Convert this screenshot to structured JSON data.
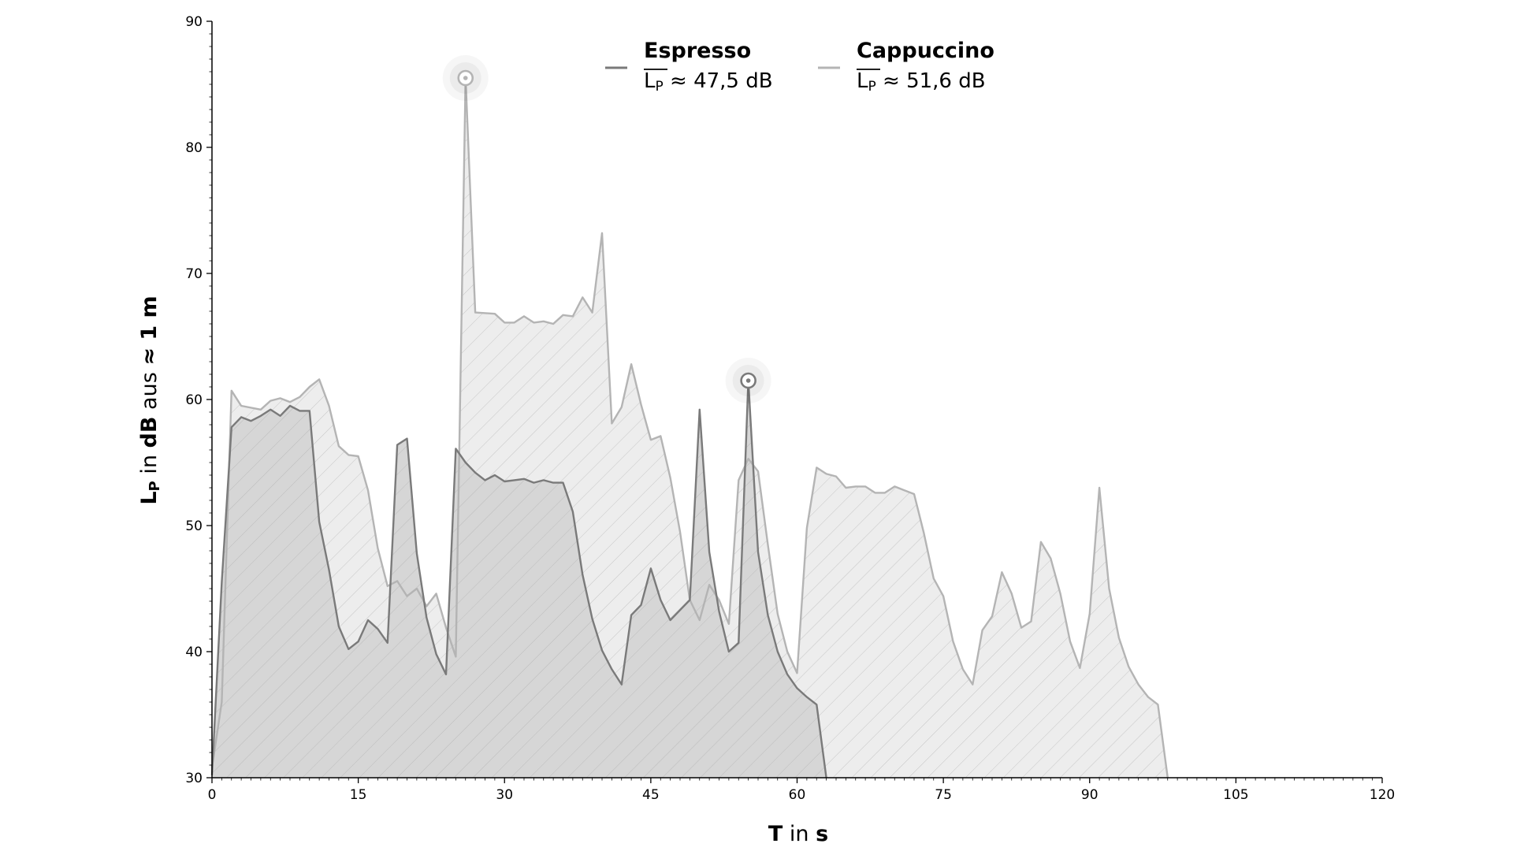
{
  "chart_data": {
    "type": "area",
    "xlabel": {
      "bold1": "T",
      "mid": " in ",
      "bold2": "s"
    },
    "ylabel": {
      "main": "L",
      "sub": "P",
      "mid": " in ",
      "bold1": "dB",
      "mid2": " aus ",
      "bold2": "≈ 1 m"
    },
    "xlim": [
      0,
      120
    ],
    "ylim": [
      30,
      90
    ],
    "x_ticks": [
      "0",
      "15",
      "30",
      "45",
      "60",
      "75",
      "90",
      "105",
      "120"
    ],
    "y_ticks": [
      "30",
      "40",
      "50",
      "60",
      "70",
      "80",
      "90"
    ],
    "grid": false,
    "legend_position": "top-center",
    "series": [
      {
        "name": "Cappuccino",
        "mean_base": "L",
        "mean_sub": "P",
        "mean_text": " ≈ 51,6 dB",
        "color": "#b4b4b4",
        "fill": "#ededed",
        "peak": [
          26,
          85.5
        ],
        "points": [
          [
            0,
            30.8
          ],
          [
            1,
            36
          ],
          [
            2,
            60.7
          ],
          [
            3,
            59.5
          ],
          [
            5,
            59.2
          ],
          [
            6,
            59.9
          ],
          [
            7,
            60.1
          ],
          [
            8,
            59.8
          ],
          [
            9,
            60.2
          ],
          [
            10,
            61
          ],
          [
            11,
            61.6
          ],
          [
            12,
            59.5
          ],
          [
            13,
            56.3
          ],
          [
            14,
            55.6
          ],
          [
            15,
            55.5
          ],
          [
            16,
            52.8
          ],
          [
            17,
            48.2
          ],
          [
            18,
            45.2
          ],
          [
            19,
            45.6
          ],
          [
            20,
            44.4
          ],
          [
            21,
            45
          ],
          [
            22,
            43.6
          ],
          [
            23,
            44.6
          ],
          [
            24,
            41.9
          ],
          [
            25,
            39.6
          ],
          [
            26,
            85.5
          ],
          [
            27,
            66.9
          ],
          [
            29,
            66.8
          ],
          [
            30,
            66.1
          ],
          [
            31,
            66.1
          ],
          [
            32,
            66.6
          ],
          [
            33,
            66.1
          ],
          [
            34,
            66.2
          ],
          [
            35,
            66
          ],
          [
            36,
            66.7
          ],
          [
            37,
            66.6
          ],
          [
            38,
            68.1
          ],
          [
            39,
            66.9
          ],
          [
            40,
            73.2
          ],
          [
            41,
            58.1
          ],
          [
            42,
            59.4
          ],
          [
            43,
            62.8
          ],
          [
            44,
            59.6
          ],
          [
            45,
            56.8
          ],
          [
            46,
            57.1
          ],
          [
            47,
            53.8
          ],
          [
            48,
            49.5
          ],
          [
            49,
            44.1
          ],
          [
            50,
            42.5
          ],
          [
            51,
            45.3
          ],
          [
            52,
            44.1
          ],
          [
            53,
            42.2
          ],
          [
            54,
            53.6
          ],
          [
            55,
            55.3
          ],
          [
            56,
            54.3
          ],
          [
            57,
            48.5
          ],
          [
            58,
            43
          ],
          [
            59,
            40
          ],
          [
            60,
            38.3
          ],
          [
            61,
            49.8
          ],
          [
            62,
            54.6
          ],
          [
            63,
            54.1
          ],
          [
            64,
            53.9
          ],
          [
            65,
            53
          ],
          [
            66,
            53.1
          ],
          [
            67,
            53.1
          ],
          [
            68,
            52.6
          ],
          [
            69,
            52.6
          ],
          [
            70,
            53.1
          ],
          [
            71,
            52.8
          ],
          [
            72,
            52.5
          ],
          [
            73,
            49.4
          ],
          [
            74,
            45.8
          ],
          [
            75,
            44.4
          ],
          [
            76,
            40.8
          ],
          [
            77,
            38.6
          ],
          [
            78,
            37.4
          ],
          [
            79,
            41.7
          ],
          [
            80,
            42.8
          ],
          [
            81,
            46.3
          ],
          [
            82,
            44.6
          ],
          [
            83,
            41.9
          ],
          [
            84,
            42.4
          ],
          [
            85,
            48.7
          ],
          [
            86,
            47.4
          ],
          [
            87,
            44.6
          ],
          [
            88,
            40.8
          ],
          [
            89,
            38.7
          ],
          [
            90,
            43
          ],
          [
            91,
            53
          ],
          [
            92,
            45
          ],
          [
            93,
            41.1
          ],
          [
            94,
            38.8
          ],
          [
            95,
            37.4
          ],
          [
            96,
            36.4
          ],
          [
            97,
            35.8
          ],
          [
            98,
            30
          ]
        ]
      },
      {
        "name": "Espresso",
        "mean_base": "L",
        "mean_sub": "P",
        "mean_text": " ≈ 47,5 dB",
        "color": "#7a7a7a",
        "fill": "#d6d6d6",
        "peak": [
          55,
          61.5
        ],
        "points": [
          [
            0,
            30.2
          ],
          [
            1,
            45.5
          ],
          [
            2,
            57.8
          ],
          [
            3,
            58.6
          ],
          [
            4,
            58.3
          ],
          [
            5,
            58.7
          ],
          [
            6,
            59.2
          ],
          [
            7,
            58.7
          ],
          [
            8,
            59.5
          ],
          [
            9,
            59.1
          ],
          [
            10,
            59.1
          ],
          [
            11,
            50.3
          ],
          [
            12,
            46.5
          ],
          [
            13,
            42
          ],
          [
            14,
            40.2
          ],
          [
            15,
            40.8
          ],
          [
            16,
            42.5
          ],
          [
            17,
            41.8
          ],
          [
            18,
            40.7
          ],
          [
            19,
            56.4
          ],
          [
            20,
            56.9
          ],
          [
            21,
            47.8
          ],
          [
            22,
            42.7
          ],
          [
            23,
            39.8
          ],
          [
            24,
            38.2
          ],
          [
            25,
            56.1
          ],
          [
            26,
            55
          ],
          [
            27,
            54.2
          ],
          [
            28,
            53.6
          ],
          [
            29,
            54
          ],
          [
            30,
            53.5
          ],
          [
            31,
            53.6
          ],
          [
            32,
            53.7
          ],
          [
            33,
            53.4
          ],
          [
            34,
            53.6
          ],
          [
            35,
            53.4
          ],
          [
            36,
            53.4
          ],
          [
            37,
            51.1
          ],
          [
            38,
            46.1
          ],
          [
            39,
            42.6
          ],
          [
            40,
            40.1
          ],
          [
            41,
            38.6
          ],
          [
            42,
            37.4
          ],
          [
            43,
            42.9
          ],
          [
            44,
            43.7
          ],
          [
            45,
            46.6
          ],
          [
            46,
            44.1
          ],
          [
            47,
            42.5
          ],
          [
            48,
            43.3
          ],
          [
            49,
            44.1
          ],
          [
            50,
            59.2
          ],
          [
            51,
            47.9
          ],
          [
            52,
            43.2
          ],
          [
            53,
            40
          ],
          [
            54,
            40.7
          ],
          [
            55,
            61.5
          ],
          [
            56,
            47.9
          ],
          [
            57,
            42.9
          ],
          [
            58,
            40
          ],
          [
            59,
            38.2
          ],
          [
            60,
            37.1
          ],
          [
            61,
            36.4
          ],
          [
            62,
            35.8
          ],
          [
            63,
            30
          ]
        ]
      }
    ]
  }
}
